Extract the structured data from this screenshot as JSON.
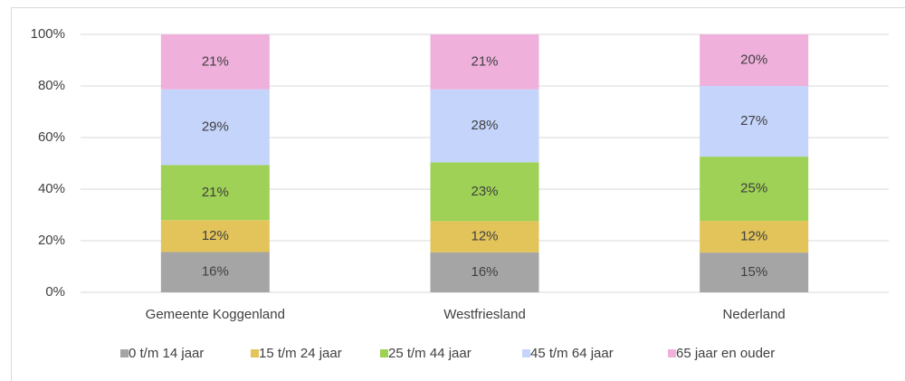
{
  "chart_data": {
    "type": "stacked_bar",
    "categories": [
      "Gemeente Koggenland",
      "Westfriesland",
      "Nederland"
    ],
    "series": [
      {
        "name": "0 t/m 14 jaar",
        "color": "#a5a5a5",
        "values": [
          15.6,
          15.5,
          15.4
        ],
        "value_labels": [
          "16%",
          "16%",
          "15%"
        ]
      },
      {
        "name": "15 t/m 24 jaar",
        "color": "#e2c45a",
        "values": [
          12.4,
          12.1,
          12.3
        ],
        "value_labels": [
          "12%",
          "12%",
          "12%"
        ]
      },
      {
        "name": "25 t/m 44 jaar",
        "color": "#9ed155",
        "values": [
          21.3,
          22.8,
          24.9
        ],
        "value_labels": [
          "21%",
          "23%",
          "25%"
        ]
      },
      {
        "name": "45 t/m 64 jaar",
        "color": "#c5d4fb",
        "values": [
          29.4,
          28.3,
          27.4
        ],
        "value_labels": [
          "29%",
          "28%",
          "27%"
        ]
      },
      {
        "name": "65 jaar en ouder",
        "color": "#f0b0dc",
        "values": [
          21.3,
          21.3,
          20.0
        ],
        "value_labels": [
          "21%",
          "21%",
          "20%"
        ]
      }
    ],
    "ylim": [
      0,
      100
    ],
    "yticks": [
      {
        "value": 0,
        "label": "0%"
      },
      {
        "value": 20,
        "label": "20%"
      },
      {
        "value": 40,
        "label": "40%"
      },
      {
        "value": 60,
        "label": "60%"
      },
      {
        "value": 80,
        "label": "80%"
      },
      {
        "value": 100,
        "label": "100%"
      }
    ],
    "grid": true,
    "legend": "bottom"
  }
}
